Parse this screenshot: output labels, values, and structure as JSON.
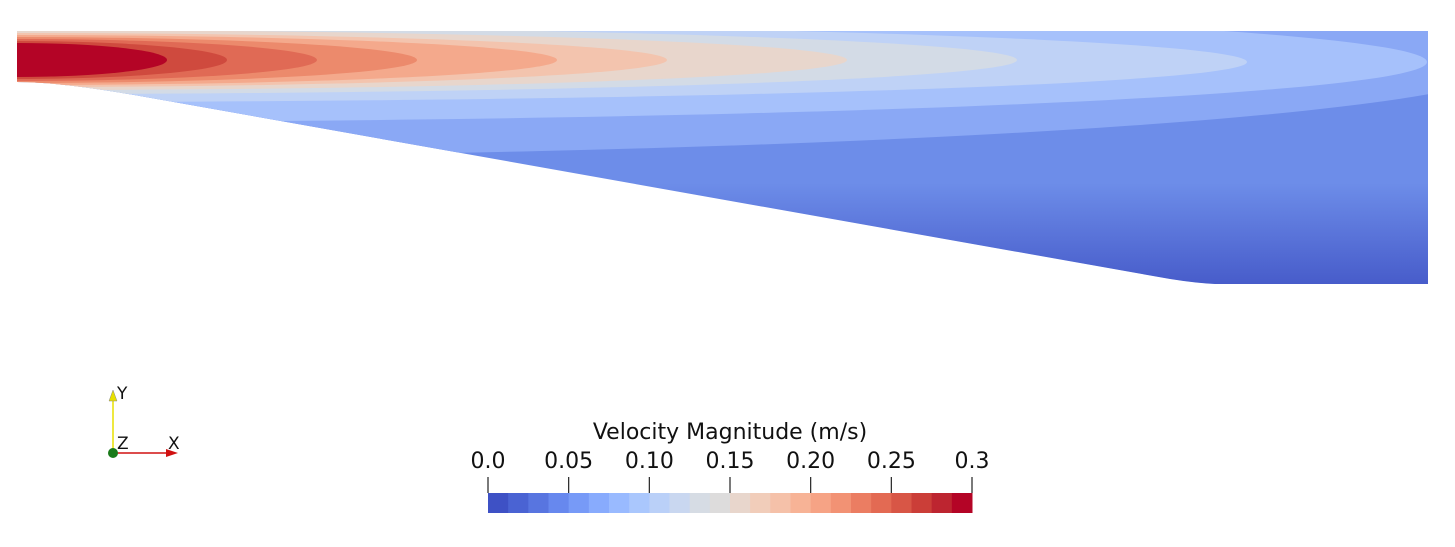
{
  "scene": {
    "axes": {
      "x": "X",
      "y": "Y",
      "z": "Z"
    }
  },
  "color_legend": {
    "title": "Velocity Magnitude (m/s)",
    "range": [
      0,
      0.3
    ],
    "ticks": [
      {
        "value": 0,
        "label": "0.0"
      },
      0.05,
      {
        "value": 0.1,
        "label": "0.10"
      },
      0.15,
      {
        "value": 0.2,
        "label": "0.20"
      },
      0.25,
      0.3
    ],
    "colors": [
      "#3e51c5",
      "#4a63d3",
      "#5875e0",
      "#6788ee",
      "#779af7",
      "#88abfd",
      "#99baff",
      "#aac7fd",
      "#bad0f8",
      "#c9d7f0",
      "#d6dce4",
      "#dddcdc",
      "#e8d6cc",
      "#f1cdba",
      "#f5c1a9",
      "#f7b396",
      "#f6a385",
      "#f29274",
      "#eb7d62",
      "#e36a53",
      "#d85646",
      "#cb3e38",
      "#bd2530",
      "#b40426"
    ]
  }
}
